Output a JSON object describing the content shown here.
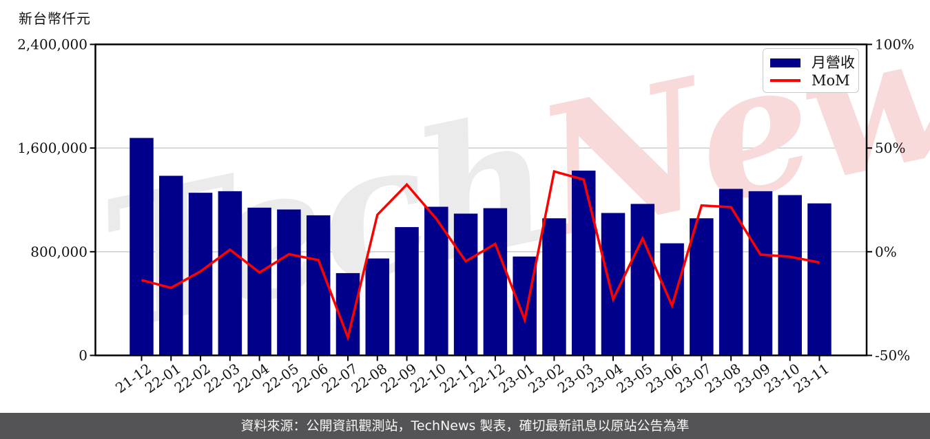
{
  "header": {
    "y_axis_title": "新台幣仟元"
  },
  "legend": {
    "items": [
      {
        "label": "月營收",
        "type": "bar",
        "color": "#00008B"
      },
      {
        "label": "MoM",
        "type": "line",
        "color": "#ff0000"
      }
    ]
  },
  "watermark": {
    "part1": "Tech",
    "part2": "News",
    "part1_color": "#ebebeb",
    "part2_color": "#f8dada"
  },
  "footer": {
    "text": "資料來源：公開資訊觀測站，TechNews 製表，確切最新訊息以原站公告為準",
    "background": "#545456"
  },
  "chart_data": {
    "type": "bar",
    "title": "",
    "categories": [
      "21-12",
      "22-01",
      "22-02",
      "22-03",
      "22-04",
      "22-05",
      "22-06",
      "22-07",
      "22-08",
      "22-09",
      "22-10",
      "22-11",
      "22-12",
      "23-01",
      "23-02",
      "23-03",
      "23-04",
      "23-05",
      "23-06",
      "23-07",
      "23-08",
      "23-09",
      "23-10",
      "23-11"
    ],
    "series": [
      {
        "name": "月營收",
        "type": "bar",
        "axis": "left",
        "unit": "新台幣仟元",
        "color": "#00008B",
        "values": [
          1678000,
          1386000,
          1255000,
          1267000,
          1140000,
          1126000,
          1081000,
          635000,
          748000,
          990000,
          1147000,
          1094000,
          1136000,
          763000,
          1058000,
          1426000,
          1099000,
          1169000,
          865000,
          1058000,
          1285000,
          1267000,
          1237000,
          1173000
        ]
      },
      {
        "name": "MoM",
        "type": "line",
        "axis": "right",
        "unit": "%",
        "color": "#ff0000",
        "values": [
          -13.7,
          -17.4,
          -9.5,
          1.0,
          -10.0,
          -1.2,
          -4.0,
          -41.3,
          17.8,
          32.4,
          15.9,
          -4.6,
          3.8,
          -32.8,
          38.7,
          34.8,
          -22.9,
          6.4,
          -26.0,
          22.3,
          21.5,
          -1.4,
          -2.4,
          -5.2
        ]
      }
    ],
    "left_axis": {
      "range": [
        0,
        2400000
      ],
      "ticks": [
        0,
        800000,
        1600000,
        2400000
      ],
      "tick_labels": [
        "0",
        "800,000",
        "1,600,000",
        "2,400,000"
      ]
    },
    "right_axis": {
      "range": [
        -50,
        100
      ],
      "ticks": [
        -50,
        0,
        50,
        100
      ],
      "tick_labels": [
        "-50%",
        "0%",
        "50%",
        "100%"
      ]
    },
    "grid": {
      "values": [
        800000,
        1600000
      ],
      "color": "#cccccc"
    },
    "x_tick_rotation": -35,
    "legend_position": "upper right"
  }
}
